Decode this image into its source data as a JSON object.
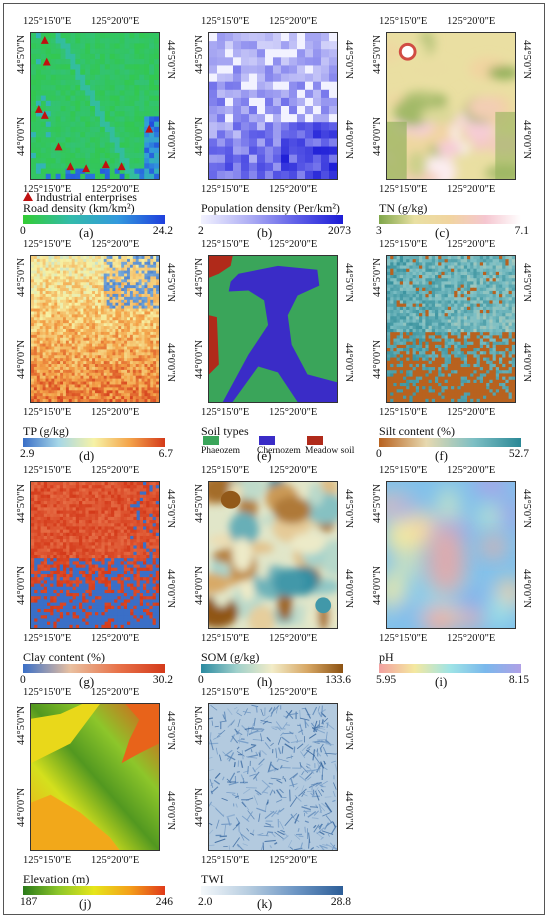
{
  "coords": {
    "lon_left": "125°15'0\"E",
    "lon_right": "125°20'0\"E",
    "lat_up": "44°5'0\"N",
    "lat_down": "44°0'0\"N"
  },
  "panels": [
    {
      "id": "(a)",
      "label": "Road  density (km/km²)",
      "min": "0",
      "max": "24.2",
      "legend_extra": "Industrial enterprises",
      "ramp": [
        "#33cc33",
        "#33bbaa",
        "#3399dd",
        "#1f3fdd"
      ]
    },
    {
      "id": "(b)",
      "label": "Population density (Per/km²)",
      "min": "2",
      "max": "2073",
      "ramp": [
        "#f2f2ff",
        "#b0b0f4",
        "#6060e8",
        "#1c1cd6"
      ]
    },
    {
      "id": "(c)",
      "label": "TN (g/kg)",
      "min": "3",
      "max": "7.1",
      "ramp": [
        "#7fa64a",
        "#e9e0a2",
        "#f1d4a0",
        "#f5c6d0",
        "#ffffff"
      ]
    },
    {
      "id": "(d)",
      "label": "TP (g/kg)",
      "min": "2.9",
      "max": "6.7",
      "ramp": [
        "#3a6fc7",
        "#a6d7e8",
        "#f6f2a6",
        "#f4a44a",
        "#d43a1a"
      ]
    },
    {
      "id": "(e)",
      "label": "Soil types",
      "min": "",
      "max": "",
      "soil": [
        {
          "name": "Phaeozem",
          "color": "#3aa55a"
        },
        {
          "name": "Chernozem",
          "color": "#3a2cc7"
        },
        {
          "name": "Meadow soil",
          "color": "#b02a1a"
        }
      ]
    },
    {
      "id": "(f)",
      "label": "Silt content (%)",
      "min": "0",
      "max": "52.7",
      "ramp": [
        "#b8621f",
        "#e7d9b0",
        "#7dbfc4",
        "#2b8896"
      ]
    },
    {
      "id": "(g)",
      "label": "Clay content (%)",
      "min": "0",
      "max": "30.2",
      "ramp": [
        "#3a6fc7",
        "#e9c0a0",
        "#e8734a",
        "#d43a1a"
      ]
    },
    {
      "id": "(h)",
      "label": "SOM (g/kg)",
      "min": "0",
      "max": "133.6",
      "ramp": [
        "#2a8aa0",
        "#9fd0cb",
        "#f2ecc8",
        "#d7a764",
        "#8c5212"
      ]
    },
    {
      "id": "(i)",
      "label": "pH",
      "min": "5.95",
      "max": "8.15",
      "ramp": [
        "#f2a0a0",
        "#f4e8a0",
        "#9fe4e6",
        "#7ab8ec",
        "#b0a0e6"
      ]
    },
    {
      "id": "(j)",
      "label": "Elevation (m)",
      "min": "187",
      "max": "246",
      "ramp": [
        "#2a7a1a",
        "#8dc62a",
        "#e6e61a",
        "#f4a01a",
        "#e03a1a"
      ]
    },
    {
      "id": "(k)",
      "label": "TWI",
      "min": "2.0",
      "max": "28.8",
      "ramp": [
        "#f4f8fb",
        "#b7cde0",
        "#6d96c4",
        "#2d5e98"
      ]
    }
  ]
}
